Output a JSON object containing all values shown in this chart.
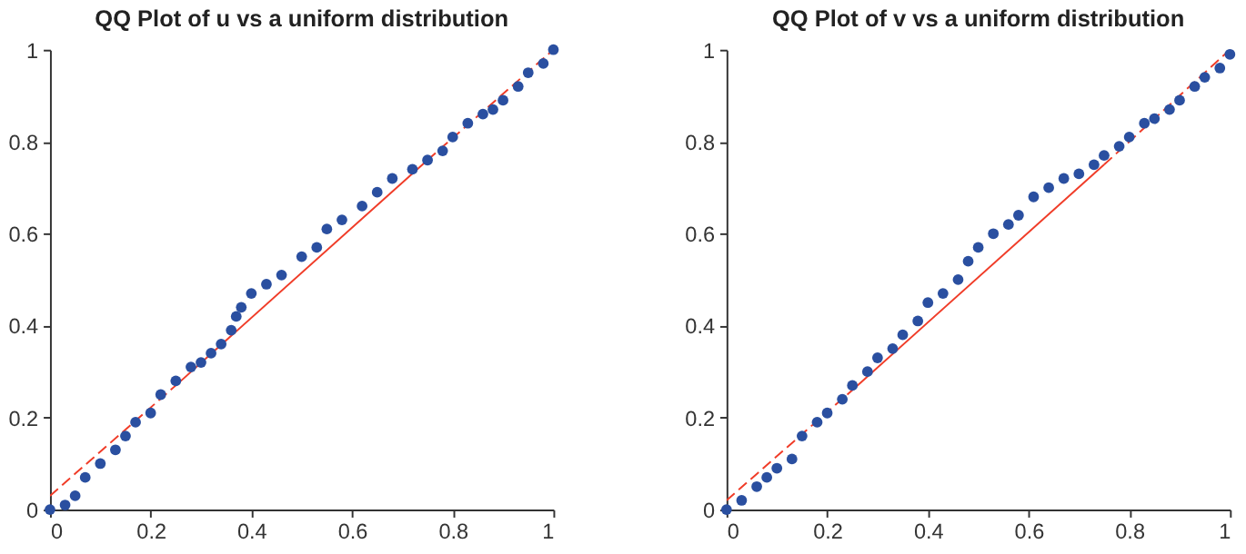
{
  "chart_data": [
    {
      "type": "scatter",
      "title": "QQ Plot of u vs a uniform distribution",
      "xlim": [
        0,
        1
      ],
      "ylim": [
        0,
        1
      ],
      "xticks": [
        0,
        0.2,
        0.4,
        0.6,
        0.8,
        1
      ],
      "yticks": [
        0,
        0.2,
        0.4,
        0.6,
        0.8,
        1
      ],
      "grid": false,
      "marker": "circle",
      "series": [
        {
          "type": "line",
          "marker": "none",
          "color": "#f03c28",
          "line_style": "dashed",
          "x": [
            0,
            0.25
          ],
          "values": [
            0.03,
            0.27
          ]
        },
        {
          "type": "line",
          "marker": "none",
          "color": "#f03c28",
          "line_style": "solid",
          "x": [
            0.25,
            0.75
          ],
          "values": [
            0.27,
            0.76
          ]
        },
        {
          "type": "line",
          "marker": "none",
          "color": "#f03c28",
          "line_style": "dashed",
          "x": [
            0.75,
            1
          ],
          "values": [
            0.76,
            1.0
          ]
        },
        {
          "color": "#2a4fa0",
          "x": [
            0,
            0.03,
            0.05,
            0.07,
            0.1,
            0.13,
            0.15,
            0.17,
            0.2,
            0.22,
            0.25,
            0.28,
            0.3,
            0.32,
            0.34,
            0.36,
            0.37,
            0.38,
            0.4,
            0.43,
            0.46,
            0.5,
            0.53,
            0.55,
            0.58,
            0.62,
            0.65,
            0.68,
            0.72,
            0.75,
            0.78,
            0.8,
            0.83,
            0.86,
            0.88,
            0.9,
            0.93,
            0.95,
            0.98,
            1
          ],
          "values": [
            0,
            0.01,
            0.03,
            0.07,
            0.1,
            0.13,
            0.16,
            0.19,
            0.21,
            0.25,
            0.28,
            0.31,
            0.32,
            0.34,
            0.36,
            0.39,
            0.42,
            0.44,
            0.47,
            0.49,
            0.51,
            0.55,
            0.57,
            0.61,
            0.63,
            0.66,
            0.69,
            0.72,
            0.74,
            0.76,
            0.78,
            0.81,
            0.84,
            0.86,
            0.87,
            0.89,
            0.92,
            0.95,
            0.97,
            1
          ]
        }
      ]
    },
    {
      "type": "scatter",
      "title": "QQ Plot of v vs a uniform distribution",
      "xlim": [
        0,
        1
      ],
      "ylim": [
        0,
        1
      ],
      "xticks": [
        0,
        0.2,
        0.4,
        0.6,
        0.8,
        1
      ],
      "yticks": [
        0,
        0.2,
        0.4,
        0.6,
        0.8,
        1
      ],
      "grid": false,
      "marker": "circle",
      "series": [
        {
          "type": "line",
          "marker": "none",
          "color": "#f03c28",
          "line_style": "dashed",
          "x": [
            0,
            0.25
          ],
          "values": [
            0.02,
            0.26
          ]
        },
        {
          "type": "line",
          "marker": "none",
          "color": "#f03c28",
          "line_style": "solid",
          "x": [
            0.25,
            0.75
          ],
          "values": [
            0.26,
            0.75
          ]
        },
        {
          "type": "line",
          "marker": "none",
          "color": "#f03c28",
          "line_style": "dashed",
          "x": [
            0.75,
            1
          ],
          "values": [
            0.75,
            1.0
          ]
        },
        {
          "color": "#2a4fa0",
          "x": [
            0,
            0.03,
            0.06,
            0.08,
            0.1,
            0.13,
            0.15,
            0.18,
            0.2,
            0.23,
            0.25,
            0.28,
            0.3,
            0.33,
            0.35,
            0.38,
            0.4,
            0.43,
            0.46,
            0.48,
            0.5,
            0.53,
            0.56,
            0.58,
            0.61,
            0.64,
            0.67,
            0.7,
            0.73,
            0.75,
            0.78,
            0.8,
            0.83,
            0.85,
            0.88,
            0.9,
            0.93,
            0.95,
            0.98,
            1
          ],
          "values": [
            0,
            0.02,
            0.05,
            0.07,
            0.09,
            0.11,
            0.16,
            0.19,
            0.21,
            0.24,
            0.27,
            0.3,
            0.33,
            0.35,
            0.38,
            0.41,
            0.45,
            0.47,
            0.5,
            0.54,
            0.57,
            0.6,
            0.62,
            0.64,
            0.68,
            0.7,
            0.72,
            0.73,
            0.75,
            0.77,
            0.79,
            0.81,
            0.84,
            0.85,
            0.87,
            0.89,
            0.92,
            0.94,
            0.96,
            0.99
          ]
        }
      ]
    }
  ]
}
